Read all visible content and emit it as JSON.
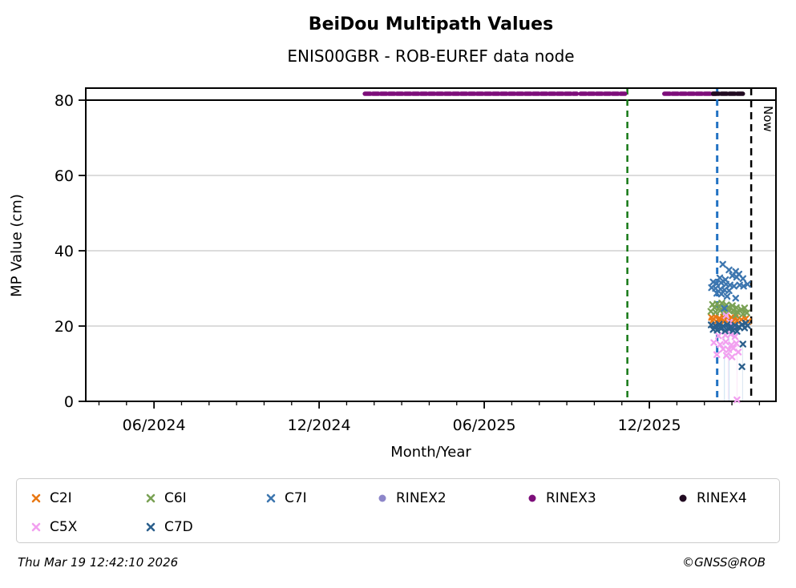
{
  "header": {
    "title": "BeiDou Multipath Values",
    "subtitle": "ENIS00GBR - ROB-EUREF data node"
  },
  "footer": {
    "timestamp": "Thu Mar 19 12:42:10 2026",
    "credit": "©GNSS@ROB"
  },
  "legend": {
    "items": [
      {
        "label": "C2I",
        "color": "#e97813",
        "marker": "x"
      },
      {
        "label": "C6I",
        "color": "#79a154",
        "marker": "x"
      },
      {
        "label": "C7I",
        "color": "#3d76af",
        "marker": "x"
      },
      {
        "label": "RINEX2",
        "color": "#8d86c9",
        "marker": "circle"
      },
      {
        "label": "RINEX3",
        "color": "#7d0e7a",
        "marker": "circle"
      },
      {
        "label": "RINEX4",
        "color": "#210b21",
        "marker": "circle"
      },
      {
        "label": "C5X",
        "color": "#f2a0f0",
        "marker": "x"
      },
      {
        "label": "C7D",
        "color": "#2b5f8c",
        "marker": "x"
      }
    ]
  },
  "chart_data": {
    "type": "scatter",
    "title": "BeiDou Multipath Values",
    "subtitle": "ENIS00GBR - ROB-EUREF data node",
    "xlabel": "Month/Year",
    "ylabel": "MP Value (cm)",
    "xlim": [
      2024.21,
      2026.3
    ],
    "ylim": [
      0,
      83.2
    ],
    "grid": "horizontal-light-gray",
    "legend_position": "below",
    "x_major_ticks": [
      {
        "x": 2024.4167,
        "label": "06/2024"
      },
      {
        "x": 2024.9167,
        "label": "12/2024"
      },
      {
        "x": 2025.4167,
        "label": "06/2025"
      },
      {
        "x": 2025.9167,
        "label": "12/2025"
      }
    ],
    "x_minor_ticks_every_months": 1,
    "y_ticks": [
      0,
      20,
      40,
      60,
      80
    ],
    "threshold_line": {
      "y": 80,
      "color": "#000000",
      "width": 2
    },
    "now_line": {
      "x": 2026.225,
      "label": "Now",
      "color": "#000000",
      "style": "dashed"
    },
    "event_lines": [
      {
        "name": "green-event-line",
        "x": 2025.85,
        "color": "#157815",
        "style": "dashed",
        "width": 2.5
      },
      {
        "name": "blue-event-line",
        "x": 2026.122,
        "color": "#2272c3",
        "style": "dashed",
        "width": 3
      }
    ],
    "availability_bars": {
      "y": 81.7,
      "segments": [
        {
          "series": "RINEX3",
          "color": "#7d0e7a",
          "from": 2025.055,
          "to": 2025.697
        },
        {
          "series": "RINEX3",
          "color": "#7d0e7a",
          "from": 2025.708,
          "to": 2025.843
        },
        {
          "series": "RINEX3",
          "color": "#7d0e7a",
          "from": 2025.962,
          "to": 2026.117
        },
        {
          "series": "RINEX4",
          "color": "#210b21",
          "from": 2026.11,
          "to": 2026.204
        }
      ]
    },
    "droplines": [
      {
        "x": 2026.144,
        "from": 29.6,
        "color": "#9ec7e8"
      },
      {
        "x": 2026.158,
        "from": 29.4,
        "color": "#9ec7e8"
      },
      {
        "x": 2026.155,
        "from": 13.7,
        "color": "#f8d2f6"
      },
      {
        "x": 2026.182,
        "from": 17.2,
        "color": "#f8d2f6"
      },
      {
        "x": 2026.199,
        "from": 15.2,
        "color": "#bcd2e4"
      }
    ],
    "series": [
      {
        "name": "C2I",
        "color": "#e97813",
        "marker": "x",
        "points": [
          [
            2026.105,
            22.3
          ],
          [
            2026.117,
            22.5
          ],
          [
            2026.129,
            22.1
          ],
          [
            2026.141,
            22.4
          ],
          [
            2026.153,
            21.9
          ],
          [
            2026.165,
            22.3
          ],
          [
            2026.177,
            22.2
          ],
          [
            2026.107,
            21.4
          ],
          [
            2026.12,
            21.2
          ],
          [
            2026.132,
            21.6
          ],
          [
            2026.144,
            21.3
          ],
          [
            2026.156,
            21.5
          ],
          [
            2026.168,
            21.0
          ],
          [
            2026.182,
            21.4
          ],
          [
            2026.196,
            21.7
          ],
          [
            2026.208,
            21.9
          ],
          [
            2026.216,
            21.2
          ]
        ]
      },
      {
        "name": "C6I",
        "color": "#79a154",
        "marker": "x",
        "points": [
          [
            2026.108,
            25.7
          ],
          [
            2026.122,
            25.9
          ],
          [
            2026.136,
            26.1
          ],
          [
            2026.15,
            25.6
          ],
          [
            2026.114,
            24.9
          ],
          [
            2026.128,
            25.1
          ],
          [
            2026.142,
            24.7
          ],
          [
            2026.156,
            25.0
          ],
          [
            2026.168,
            25.4
          ],
          [
            2026.18,
            24.9
          ],
          [
            2026.103,
            23.9
          ],
          [
            2026.117,
            23.7
          ],
          [
            2026.131,
            24.1
          ],
          [
            2026.145,
            23.8
          ],
          [
            2026.159,
            24.0
          ],
          [
            2026.171,
            24.2
          ],
          [
            2026.183,
            23.8
          ],
          [
            2026.195,
            24.4
          ],
          [
            2026.205,
            24.8
          ],
          [
            2026.212,
            23.5
          ],
          [
            2026.2,
            23.2
          ],
          [
            2026.178,
            22.9
          ]
        ]
      },
      {
        "name": "C7I",
        "color": "#3d76af",
        "marker": "x",
        "points": [
          [
            2026.139,
            36.4
          ],
          [
            2026.158,
            34.9
          ],
          [
            2026.178,
            34.5
          ],
          [
            2026.188,
            33.8
          ],
          [
            2026.168,
            33.4
          ],
          [
            2026.181,
            33.0
          ],
          [
            2026.13,
            32.8
          ],
          [
            2026.147,
            32.3
          ],
          [
            2026.2,
            32.6
          ],
          [
            2026.11,
            31.7
          ],
          [
            2026.12,
            31.3
          ],
          [
            2026.134,
            31.5
          ],
          [
            2026.149,
            31.1
          ],
          [
            2026.161,
            30.9
          ],
          [
            2026.173,
            30.6
          ],
          [
            2026.19,
            30.9
          ],
          [
            2026.202,
            30.6
          ],
          [
            2026.214,
            31.1
          ],
          [
            2026.105,
            30.2
          ],
          [
            2026.117,
            30.0
          ],
          [
            2026.132,
            29.8
          ],
          [
            2026.144,
            29.6
          ],
          [
            2026.158,
            29.4
          ],
          [
            2026.121,
            28.7
          ],
          [
            2026.135,
            28.5
          ],
          [
            2026.152,
            27.9
          ],
          [
            2026.178,
            27.4
          ],
          [
            2026.144,
            24.7
          ]
        ]
      },
      {
        "name": "RINEX2",
        "color": "#8d86c9",
        "marker": "circle",
        "points": []
      },
      {
        "name": "RINEX3",
        "color": "#7d0e7a",
        "marker": "circle",
        "points": []
      },
      {
        "name": "RINEX4",
        "color": "#210b21",
        "marker": "circle",
        "points": []
      },
      {
        "name": "C5X",
        "color": "#f2a0f0",
        "marker": "x",
        "points": [
          [
            2026.149,
            22.8
          ],
          [
            2026.16,
            21.0
          ],
          [
            2026.172,
            19.8
          ],
          [
            2026.126,
            17.4
          ],
          [
            2026.147,
            17.6
          ],
          [
            2026.163,
            17.8
          ],
          [
            2026.176,
            17.2
          ],
          [
            2026.112,
            15.6
          ],
          [
            2026.131,
            15.1
          ],
          [
            2026.148,
            15.8
          ],
          [
            2026.165,
            15.0
          ],
          [
            2026.18,
            15.4
          ],
          [
            2026.14,
            13.9
          ],
          [
            2026.157,
            13.7
          ],
          [
            2026.171,
            14.1
          ],
          [
            2026.121,
            12.4
          ],
          [
            2026.15,
            12.2
          ],
          [
            2026.167,
            11.8
          ],
          [
            2026.186,
            13.1
          ],
          [
            2026.182,
            0.4
          ]
        ]
      },
      {
        "name": "C7D",
        "color": "#2b5f8c",
        "marker": "x",
        "points": [
          [
            2026.104,
            20.3
          ],
          [
            2026.116,
            20.1
          ],
          [
            2026.128,
            20.5
          ],
          [
            2026.14,
            20.0
          ],
          [
            2026.152,
            20.4
          ],
          [
            2026.164,
            19.9
          ],
          [
            2026.176,
            20.2
          ],
          [
            2026.188,
            19.8
          ],
          [
            2026.198,
            20.4
          ],
          [
            2026.208,
            20.8
          ],
          [
            2026.11,
            19.1
          ],
          [
            2026.122,
            18.9
          ],
          [
            2026.134,
            19.3
          ],
          [
            2026.146,
            18.7
          ],
          [
            2026.158,
            19.2
          ],
          [
            2026.17,
            18.8
          ],
          [
            2026.182,
            18.6
          ],
          [
            2026.214,
            20.1
          ],
          [
            2026.205,
            19.5
          ],
          [
            2026.2,
            15.2
          ],
          [
            2026.197,
            9.2
          ]
        ]
      }
    ]
  }
}
